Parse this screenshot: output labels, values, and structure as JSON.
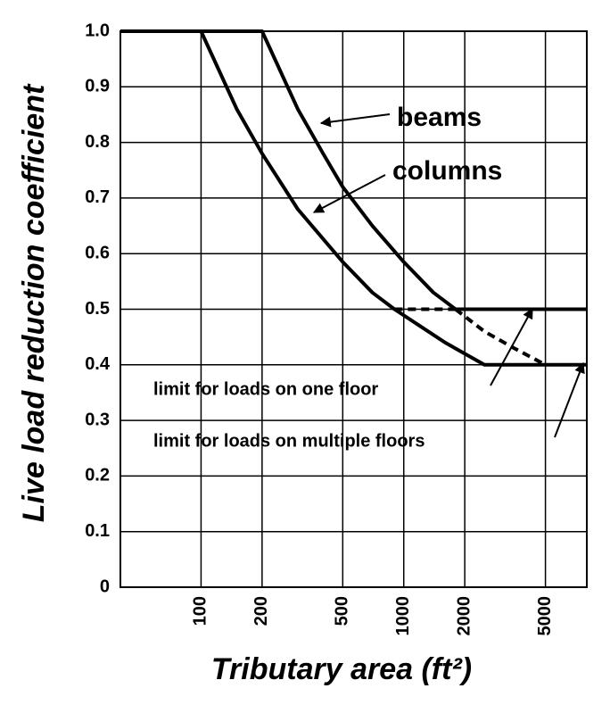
{
  "chart_data": {
    "type": "line",
    "xlabel": "Tributary area (ft²)",
    "ylabel": "Live load reduction coefficient",
    "xscale": "log",
    "xlim": [
      40,
      8000
    ],
    "xticks": [
      100,
      200,
      500,
      1000,
      2000,
      5000
    ],
    "ylim": [
      0,
      1
    ],
    "yticks": [
      0,
      0.1,
      0.2,
      0.3,
      0.4,
      0.5,
      0.6,
      0.7,
      0.8,
      0.9,
      {
        "value": 1,
        "label": "1.0"
      }
    ],
    "grid": true,
    "series": [
      {
        "name": "beams",
        "color": "#000000",
        "x": [
          40,
          200,
          300,
          400,
          500,
          700,
          1000,
          1400,
          1800,
          8000
        ],
        "values": [
          1,
          1,
          0.86,
          0.78,
          0.72,
          0.65,
          0.585,
          0.53,
          0.5,
          0.5
        ]
      },
      {
        "name": "columns",
        "color": "#000000",
        "x": [
          40,
          100,
          150,
          200,
          300,
          500,
          700,
          900,
          1200,
          1600,
          2500,
          8000
        ],
        "values": [
          1,
          1,
          0.86,
          0.78,
          0.68,
          0.585,
          0.53,
          0.5,
          0.47,
          0.44,
          0.4,
          0.4
        ]
      },
      {
        "color": "#000000",
        "dashed": true,
        "x": [
          1800,
          2500,
          3500,
          5000
        ],
        "values": [
          0.5,
          0.46,
          0.43,
          0.4
        ]
      },
      {
        "color": "#000000",
        "dashed": true,
        "x": [
          900,
          1800
        ],
        "values": [
          0.5,
          0.5
        ]
      }
    ],
    "annotations": [
      "limit for loads on one floor",
      "limit for loads on multiple floors"
    ]
  }
}
